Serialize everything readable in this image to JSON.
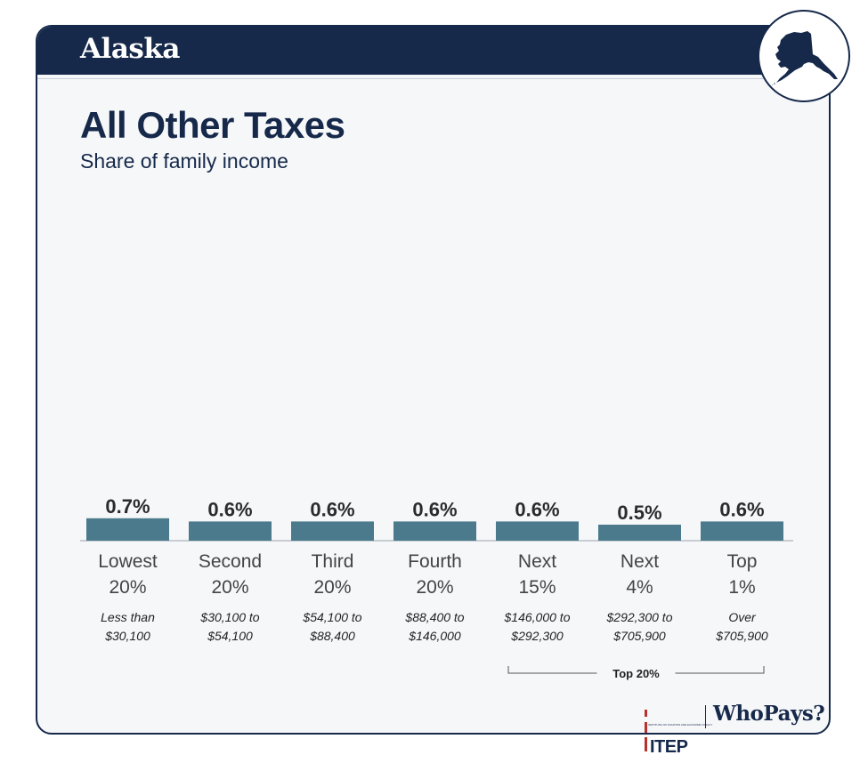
{
  "header": {
    "state": "Alaska",
    "badge_icon": "alaska-state-silhouette-icon"
  },
  "chart_data": {
    "type": "bar",
    "title": "All Other Taxes",
    "subtitle": "Share of family income",
    "unit": "%",
    "categories": [
      {
        "group": [
          "Lowest",
          "20%"
        ],
        "range": [
          "Less than",
          "$30,100"
        ]
      },
      {
        "group": [
          "Second",
          "20%"
        ],
        "range": [
          "$30,100 to",
          "$54,100"
        ]
      },
      {
        "group": [
          "Third",
          "20%"
        ],
        "range": [
          "$54,100 to",
          "$88,400"
        ]
      },
      {
        "group": [
          "Fourth",
          "20%"
        ],
        "range": [
          "$88,400 to",
          "$146,000"
        ]
      },
      {
        "group": [
          "Next",
          "15%"
        ],
        "range": [
          "$146,000 to",
          "$292,300"
        ]
      },
      {
        "group": [
          "Next",
          "4%"
        ],
        "range": [
          "$292,300 to",
          "$705,900"
        ]
      },
      {
        "group": [
          "Top",
          "1%"
        ],
        "range": [
          "Over",
          "$705,900"
        ]
      }
    ],
    "values": [
      0.7,
      0.6,
      0.6,
      0.6,
      0.6,
      0.5,
      0.6
    ],
    "value_labels": [
      "0.7%",
      "0.6%",
      "0.6%",
      "0.6%",
      "0.6%",
      "0.5%",
      "0.6%"
    ],
    "bracket": {
      "label": "Top 20%",
      "from_index": 4,
      "to_index": 6
    },
    "grid": false,
    "bar_color": "#4a7a8c"
  },
  "footer": {
    "itep_label": "ITEP",
    "itep_tagline": "INSTITUTE ON TAXATION AND ECONOMIC POLICY",
    "whopays_label": "WhoPays?"
  },
  "colors": {
    "navy": "#16294a",
    "bar": "#4a7a8c",
    "background": "#f6f7f9",
    "accent_red": "#b8312f"
  }
}
